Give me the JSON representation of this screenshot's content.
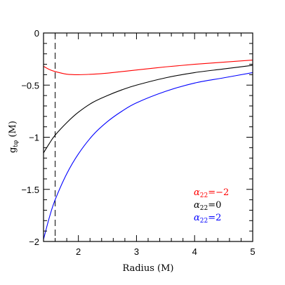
{
  "chart_data": {
    "type": "line",
    "title": "",
    "xlabel": "Radius (M)",
    "ylabel_main": "g",
    "ylabel_sub": "tφ",
    "ylabel_unit": " (M)",
    "xlim": [
      1.4,
      5
    ],
    "ylim": [
      -2,
      0
    ],
    "x_ticks": [
      2,
      3,
      4,
      5
    ],
    "y_ticks": [
      0,
      -0.5,
      -1,
      -1.5,
      -2
    ],
    "x_tick_labels": [
      "2",
      "3",
      "4",
      "5"
    ],
    "y_tick_labels": [
      "0",
      "−0.5",
      "−1",
      "−1.5",
      "−2"
    ],
    "vline_x": 1.6,
    "x": [
      1.4,
      1.5,
      1.6,
      1.8,
      2.0,
      2.25,
      2.5,
      2.75,
      3.0,
      3.5,
      4.0,
      4.5,
      5.0
    ],
    "series": [
      {
        "name_greek": "α",
        "name_sub": "22",
        "name_value": "=−2",
        "color": "#ff0000",
        "values": [
          -0.32,
          -0.35,
          -0.37,
          -0.395,
          -0.4,
          -0.395,
          -0.385,
          -0.37,
          -0.355,
          -0.325,
          -0.3,
          -0.28,
          -0.26
        ]
      },
      {
        "name_greek": "α",
        "name_sub": "22",
        "name_value": "=0",
        "color": "#000000",
        "values": [
          -1.15,
          -1.06,
          -0.98,
          -0.86,
          -0.76,
          -0.665,
          -0.6,
          -0.545,
          -0.5,
          -0.43,
          -0.38,
          -0.345,
          -0.31
        ]
      },
      {
        "name_greek": "α",
        "name_sub": "22",
        "name_value": "=2",
        "color": "#0000ff",
        "values": [
          -1.98,
          -1.77,
          -1.6,
          -1.35,
          -1.16,
          -0.98,
          -0.85,
          -0.75,
          -0.67,
          -0.56,
          -0.48,
          -0.43,
          -0.38
        ]
      }
    ],
    "legend_position": "bottom-right",
    "grid": false
  }
}
